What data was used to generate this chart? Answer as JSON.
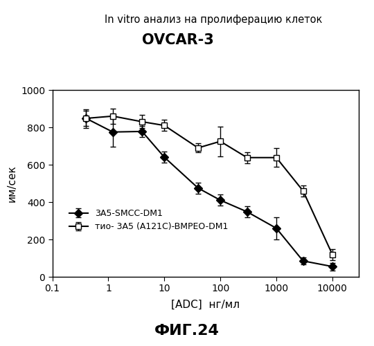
{
  "title_line1": "In vitro анализ на пролиферацию клеток",
  "title_line2": "OVCAR-3",
  "xlabel": "[ADC]  нг/мл",
  "ylabel": "им/сек",
  "footer": "ФИГ.24",
  "series1_label": "3А5-SMCC-DM1",
  "series2_label": "тио- 3А5 (A121C)-BMPEO-DM1",
  "series1_x": [
    0.4,
    1.2,
    4,
    10,
    40,
    100,
    300,
    1000,
    3000,
    10000
  ],
  "series1_y": [
    848,
    775,
    778,
    640,
    475,
    410,
    348,
    260,
    85,
    55
  ],
  "series1_yerr": [
    40,
    80,
    30,
    30,
    30,
    30,
    30,
    60,
    20,
    20
  ],
  "series2_x": [
    0.4,
    1.2,
    4,
    10,
    40,
    100,
    300,
    1000,
    3000,
    10000
  ],
  "series2_y": [
    848,
    860,
    830,
    810,
    690,
    725,
    638,
    638,
    460,
    120
  ],
  "series2_yerr": [
    50,
    40,
    35,
    30,
    25,
    80,
    30,
    50,
    30,
    30
  ],
  "ylim": [
    0,
    1000
  ],
  "xlim_left": 0.1,
  "xlim_right": 30000,
  "yticks": [
    0,
    200,
    400,
    600,
    800,
    1000
  ],
  "xticks": [
    0.1,
    1,
    10,
    100,
    1000,
    10000
  ],
  "xticklabels": [
    "0.1",
    "1",
    "10",
    "100",
    "1000",
    "10000"
  ],
  "color": "#000000",
  "background": "#ffffff",
  "title1_fontsize": 10.5,
  "title2_fontsize": 15,
  "xlabel_fontsize": 11,
  "ylabel_fontsize": 11,
  "footer_fontsize": 16,
  "legend_fontsize": 9,
  "tick_fontsize": 10
}
